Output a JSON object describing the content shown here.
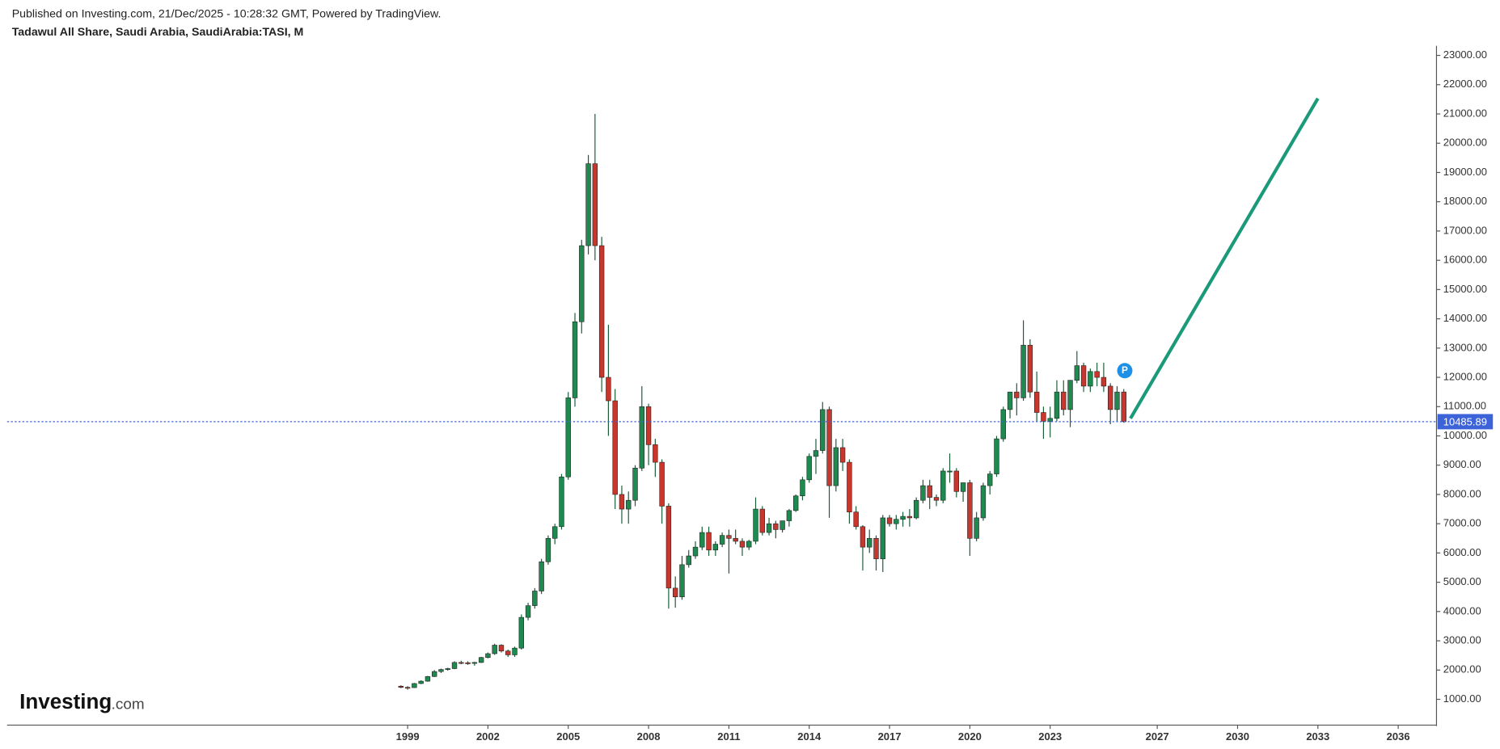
{
  "header": {
    "published": "Published on Investing.com, 21/Dec/2025 - 10:28:32 GMT, Powered by TradingView.",
    "symbol": "Tadawul All Share, Saudi Arabia, SaudiArabia:TASI, M"
  },
  "logo": {
    "name": "Investing",
    "suffix": ".com"
  },
  "chart_data": {
    "type": "candlestick",
    "up_color": "#1f8a4f",
    "down_color": "#c8372d",
    "x": [
      1998.75,
      1999,
      1999.25,
      1999.5,
      1999.75,
      2000,
      2000.25,
      2000.5,
      2000.75,
      2001,
      2001.25,
      2001.5,
      2001.75,
      2002,
      2002.25,
      2002.5,
      2002.75,
      2003,
      2003.25,
      2003.5,
      2003.75,
      2004,
      2004.25,
      2004.5,
      2004.75,
      2005,
      2005.25,
      2005.5,
      2005.75,
      2006,
      2006.25,
      2006.5,
      2006.75,
      2007,
      2007.25,
      2007.5,
      2007.75,
      2008,
      2008.25,
      2008.5,
      2008.75,
      2009,
      2009.25,
      2009.5,
      2009.75,
      2010,
      2010.25,
      2010.5,
      2010.75,
      2011,
      2011.25,
      2011.5,
      2011.75,
      2012,
      2012.25,
      2012.5,
      2012.75,
      2013,
      2013.25,
      2013.5,
      2013.75,
      2014,
      2014.25,
      2014.5,
      2014.75,
      2015,
      2015.25,
      2015.5,
      2015.75,
      2016,
      2016.25,
      2016.5,
      2016.75,
      2017,
      2017.25,
      2017.5,
      2017.75,
      2018,
      2018.25,
      2018.5,
      2018.75,
      2019,
      2019.25,
      2019.5,
      2019.75,
      2020,
      2020.25,
      2020.5,
      2020.75,
      2021,
      2021.25,
      2021.5,
      2021.75,
      2022,
      2022.25,
      2022.5,
      2022.75,
      2023,
      2023.25,
      2023.5,
      2023.75,
      2024,
      2024.25,
      2024.5,
      2024.75,
      2025,
      2025.25,
      2025.5,
      2025.75
    ],
    "open": [
      1450,
      1410,
      1400,
      1540,
      1620,
      1780,
      1950,
      2020,
      2050,
      2260,
      2250,
      2240,
      2260,
      2430,
      2560,
      2850,
      2650,
      2520,
      2750,
      3800,
      4200,
      4700,
      5700,
      6500,
      6900,
      8600,
      11300,
      13900,
      16500,
      19300,
      16500,
      12000,
      11200,
      8000,
      7500,
      7800,
      8900,
      11000,
      9700,
      9100,
      7600,
      4800,
      4500,
      5600,
      5900,
      6200,
      6700,
      6100,
      6300,
      6600,
      6500,
      6400,
      6200,
      6400,
      7500,
      6700,
      7000,
      6800,
      7100,
      7450,
      7950,
      8500,
      9300,
      9500,
      10900,
      8300,
      9600,
      9100,
      7400,
      6900,
      6200,
      6500,
      5800,
      7200,
      7000,
      7150,
      7250,
      7200,
      7800,
      8300,
      7900,
      7800,
      8800,
      8800,
      8100,
      8400,
      6500,
      7200,
      8300,
      8700,
      9900,
      10900,
      11500,
      11300,
      13100,
      11500,
      10800,
      10500,
      10600,
      11500,
      10900,
      11900,
      12400,
      11700,
      12200,
      12000,
      11700,
      10900,
      11500
    ],
    "high": [
      1480,
      1450,
      1560,
      1650,
      1800,
      2000,
      2050,
      2080,
      2300,
      2320,
      2300,
      2280,
      2450,
      2600,
      2900,
      2880,
      2700,
      2800,
      3900,
      4300,
      4800,
      5800,
      6600,
      7000,
      8700,
      11500,
      14200,
      16700,
      19600,
      21000,
      16800,
      13800,
      11600,
      8300,
      8100,
      9000,
      11700,
      11100,
      9900,
      9200,
      7700,
      5200,
      5900,
      6100,
      6400,
      6900,
      6900,
      6400,
      6700,
      6800,
      6800,
      6500,
      6450,
      7900,
      7600,
      7200,
      7100,
      7100,
      7500,
      8000,
      8600,
      9400,
      9900,
      11160,
      11000,
      9900,
      9900,
      9200,
      7600,
      6950,
      6800,
      6600,
      7300,
      7300,
      7300,
      7400,
      7500,
      7900,
      8500,
      8500,
      8000,
      8900,
      9400,
      8900,
      8400,
      8500,
      7400,
      8400,
      8800,
      10000,
      11000,
      11500,
      11800,
      13950,
      13300,
      12200,
      11000,
      11000,
      11900,
      11900,
      11900,
      12900,
      12500,
      12300,
      12500,
      12500,
      11800,
      11700,
      11600
    ],
    "low": [
      1380,
      1330,
      1390,
      1520,
      1600,
      1760,
      1900,
      1980,
      2030,
      2200,
      2180,
      2150,
      2240,
      2400,
      2520,
      2600,
      2450,
      2450,
      2700,
      3700,
      4100,
      4600,
      5600,
      6300,
      6800,
      8500,
      11000,
      13500,
      16200,
      16000,
      11500,
      10000,
      7500,
      7000,
      7000,
      7600,
      8800,
      9000,
      8600,
      7000,
      4100,
      4130,
      4400,
      5500,
      5800,
      6100,
      5900,
      5900,
      6200,
      5300,
      6300,
      5900,
      6100,
      6300,
      6600,
      6600,
      6500,
      6700,
      6900,
      7400,
      7800,
      8400,
      8700,
      9400,
      7200,
      8100,
      8800,
      7000,
      6800,
      5400,
      6000,
      5400,
      5350,
      6900,
      6800,
      6900,
      6900,
      7150,
      7700,
      7500,
      7600,
      7700,
      8400,
      7900,
      7750,
      5900,
      6400,
      7100,
      8000,
      8600,
      9800,
      10600,
      10700,
      11200,
      11300,
      10500,
      9900,
      9950,
      10500,
      10700,
      10300,
      11800,
      11500,
      11500,
      11700,
      11500,
      10400,
      10500,
      10450
    ],
    "close": [
      1410,
      1400,
      1540,
      1620,
      1780,
      1950,
      2020,
      2050,
      2260,
      2250,
      2240,
      2260,
      2430,
      2560,
      2850,
      2650,
      2520,
      2750,
      3800,
      4200,
      4700,
      5700,
      6500,
      6900,
      8600,
      11300,
      13900,
      16500,
      19300,
      16500,
      12000,
      11200,
      8000,
      7500,
      7800,
      8900,
      11000,
      9700,
      9100,
      7600,
      4800,
      4500,
      5600,
      5900,
      6200,
      6700,
      6100,
      6300,
      6600,
      6500,
      6400,
      6200,
      6400,
      7500,
      6700,
      7000,
      6800,
      7100,
      7450,
      7950,
      8500,
      9300,
      9500,
      10900,
      8300,
      9600,
      9100,
      7400,
      6900,
      6200,
      6500,
      5800,
      7200,
      7000,
      7150,
      7250,
      7200,
      7800,
      8300,
      7900,
      7800,
      8800,
      8800,
      8100,
      8400,
      6500,
      7200,
      8300,
      8700,
      9900,
      10900,
      11500,
      11300,
      13100,
      11500,
      10800,
      10500,
      10600,
      11500,
      10900,
      11900,
      12400,
      11700,
      12200,
      12000,
      11700,
      10900,
      11500,
      10485.89
    ],
    "last_price": 10485.89,
    "price_line_color": "#3d63d9",
    "marker_label": "P",
    "trend_line": {
      "x": [
        2026,
        2033
      ],
      "y": [
        10598,
        21531
      ],
      "color": "#1b9a79"
    },
    "xlim": [
      1984.04,
      2037.43
    ],
    "ylim": [
      119,
      23326
    ],
    "xticks": [
      1999,
      2002,
      2005,
      2008,
      2011,
      2014,
      2017,
      2020,
      2023,
      2027,
      2030,
      2033,
      2036
    ],
    "yticks": [
      {
        "value": 1000,
        "label": "1000.00"
      },
      {
        "value": 2000,
        "label": "2000.00"
      },
      {
        "value": 3000,
        "label": "3000.00"
      },
      {
        "value": 4000,
        "label": "4000.00"
      },
      {
        "value": 5000,
        "label": "5000.00"
      },
      {
        "value": 6000,
        "label": "6000.00"
      },
      {
        "value": 7000,
        "label": "7000.00"
      },
      {
        "value": 8000,
        "label": "8000.00"
      },
      {
        "value": 9000,
        "label": "9000.00"
      },
      {
        "value": 10000,
        "label": "10000.00"
      },
      {
        "value": 11000,
        "label": "11000.00"
      },
      {
        "value": 12000,
        "label": "12000.00"
      },
      {
        "value": 13000,
        "label": "13000.00"
      },
      {
        "value": 14000,
        "label": "14000.00"
      },
      {
        "value": 15000,
        "label": "15000.00"
      },
      {
        "value": 16000,
        "label": "16000.00"
      },
      {
        "value": 17000,
        "label": "17000.00"
      },
      {
        "value": 18000,
        "label": "18000.00"
      },
      {
        "value": 19000,
        "label": "19000.00"
      },
      {
        "value": 20000,
        "label": "20000.00"
      },
      {
        "value": 21000,
        "label": "21000.00"
      },
      {
        "value": 22000,
        "label": "22000.00"
      },
      {
        "value": 23000,
        "label": "23000.00"
      }
    ]
  }
}
